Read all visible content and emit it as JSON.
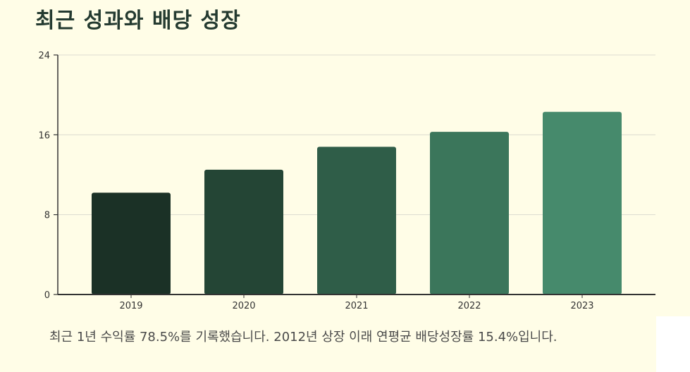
{
  "title": "최근 성과와 배당 성장",
  "summary": "최근 1년 수익률 78.5%를 기록했습니다. 2012년 상장 이래 연평균 배당성장률 15.4%입니다.",
  "colors": {
    "background": "#fffde7",
    "title": "#243a30",
    "axis": "#333333",
    "grid": "#dcdcd0",
    "bars": [
      "#1b3126",
      "#244535",
      "#2f5d48",
      "#3b765b",
      "#468a6c"
    ]
  },
  "chart_data": {
    "type": "bar",
    "categories": [
      "2019",
      "2020",
      "2021",
      "2022",
      "2023"
    ],
    "values": [
      10.2,
      12.5,
      14.8,
      16.3,
      18.3
    ],
    "ylim": [
      0,
      24
    ],
    "yticks": [
      0,
      8,
      16,
      24
    ],
    "grid": true,
    "legend": "none",
    "xlabel": "",
    "ylabel": ""
  }
}
